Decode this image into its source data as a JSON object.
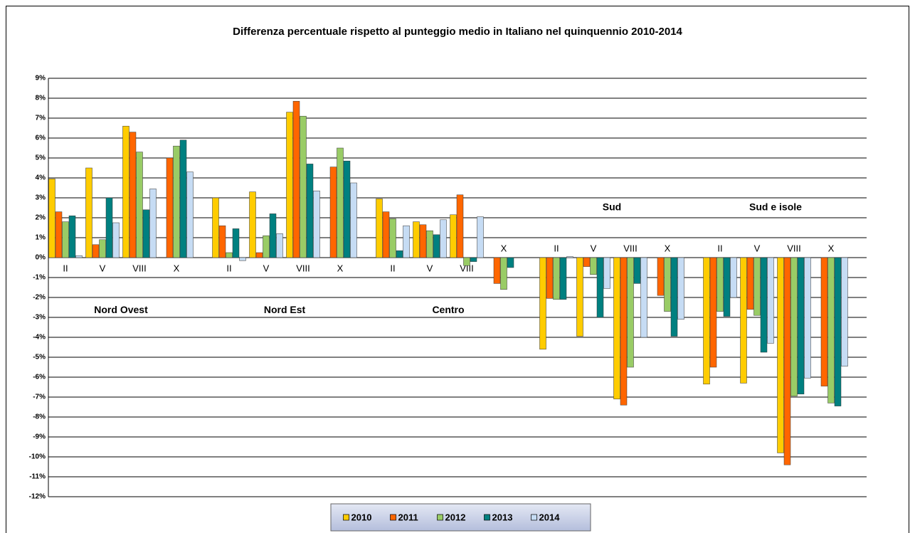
{
  "chart_data": {
    "type": "bar",
    "title": "Differenza percentuale rispetto al punteggio medio in Italiano nel quinquennio 2010-2014",
    "categories": [
      "II",
      "V",
      "VIII",
      "X",
      "II",
      "V",
      "VIII",
      "X",
      "II",
      "V",
      "VIII",
      "X",
      "II",
      "V",
      "VIII",
      "X",
      "II",
      "V",
      "VIII",
      "X"
    ],
    "group_labels": [
      "Nord Ovest",
      "Nord Est",
      "Centro",
      "Sud",
      "Sud e isole"
    ],
    "series": [
      {
        "name": "2010",
        "color": "#ffcc00",
        "values": [
          3.95,
          4.5,
          6.6,
          null,
          3.0,
          3.3,
          7.3,
          null,
          2.95,
          1.8,
          2.15,
          null,
          -4.6,
          -3.95,
          -7.1,
          null,
          -6.35,
          -6.3,
          -9.8,
          null
        ]
      },
      {
        "name": "2011",
        "color": "#ff6600",
        "values": [
          2.3,
          0.65,
          6.3,
          5.0,
          1.6,
          0.25,
          7.85,
          4.55,
          2.3,
          1.65,
          3.15,
          -1.3,
          -2.05,
          -0.45,
          -7.4,
          -1.9,
          -5.5,
          -2.6,
          -10.4,
          -6.45
        ]
      },
      {
        "name": "2012",
        "color": "#99cc66",
        "values": [
          1.8,
          0.9,
          5.3,
          5.6,
          0.25,
          1.1,
          7.1,
          5.5,
          1.95,
          1.35,
          -0.4,
          -1.6,
          -2.1,
          -0.85,
          -5.5,
          -2.7,
          -2.7,
          -2.9,
          -6.95,
          -7.3
        ]
      },
      {
        "name": "2013",
        "color": "#008080",
        "values": [
          2.1,
          3.0,
          2.4,
          5.9,
          1.45,
          2.2,
          4.7,
          4.85,
          0.35,
          1.15,
          -0.2,
          -0.5,
          -2.1,
          -3.0,
          -1.3,
          -3.95,
          -2.95,
          -4.75,
          -6.85,
          -7.45
        ]
      },
      {
        "name": "2014",
        "color": "#c6dcf4",
        "values": [
          0.1,
          1.75,
          3.45,
          4.3,
          -0.15,
          1.2,
          3.35,
          3.75,
          1.6,
          1.9,
          2.05,
          null,
          0.05,
          -1.55,
          -4.0,
          -3.1,
          -2.0,
          -4.3,
          -6.05,
          -5.45
        ]
      }
    ],
    "ylim": [
      -12,
      9
    ],
    "yticks": [
      {
        "value": -12,
        "label": "-12%"
      },
      {
        "value": -11,
        "label": "-11%"
      },
      {
        "value": -10,
        "label": "-10%"
      },
      {
        "value": -9,
        "label": "-9%"
      },
      {
        "value": -8,
        "label": "-8%"
      },
      {
        "value": -7,
        "label": "-7%"
      },
      {
        "value": -6,
        "label": "-6%"
      },
      {
        "value": -5,
        "label": "-5%"
      },
      {
        "value": -4,
        "label": "-4%"
      },
      {
        "value": -3,
        "label": "-3%"
      },
      {
        "value": -2,
        "label": "-2%"
      },
      {
        "value": -1,
        "label": "-1%"
      },
      {
        "value": 0,
        "label": "0%"
      },
      {
        "value": 1,
        "label": "1%"
      },
      {
        "value": 2,
        "label": "2%"
      },
      {
        "value": 3,
        "label": "3%"
      },
      {
        "value": 4,
        "label": "4%"
      },
      {
        "value": 5,
        "label": "5%"
      },
      {
        "value": 6,
        "label": "6%"
      },
      {
        "value": 7,
        "label": "7%"
      },
      {
        "value": 8,
        "label": "8%"
      },
      {
        "value": 9,
        "label": "9%"
      }
    ],
    "grid": true,
    "legend": "bottom"
  }
}
